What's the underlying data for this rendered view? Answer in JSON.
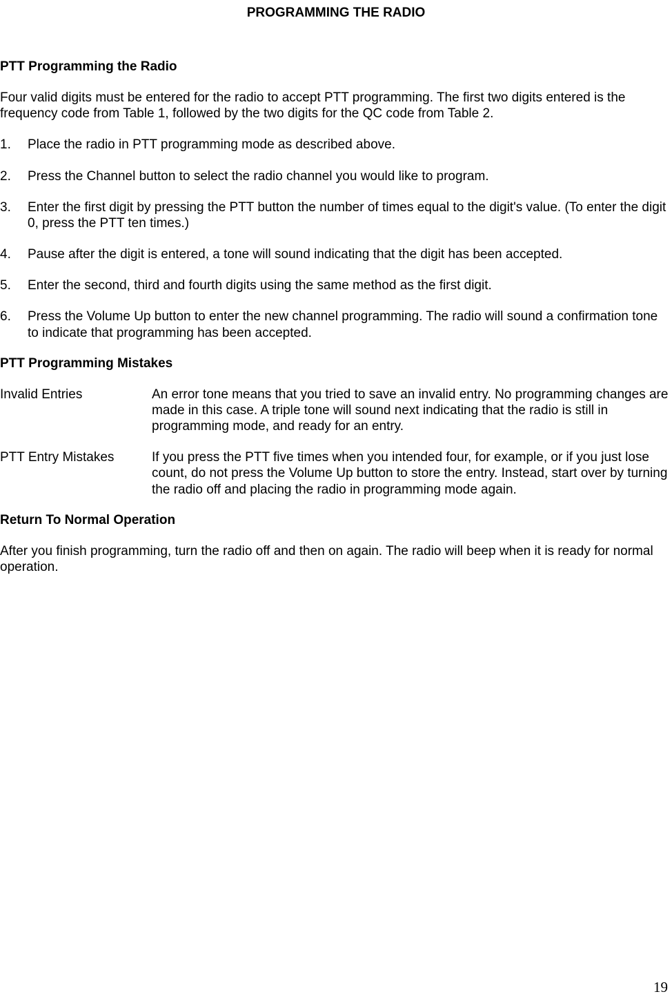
{
  "page": {
    "number": "19",
    "title": "PROGRAMMING THE RADIO"
  },
  "section1": {
    "heading": "PTT Programming the Radio",
    "intro": "Four valid digits must be entered for the radio to accept PTT programming.  The first two digits entered is the frequency code from Table 1, followed by the two digits for the QC code from Table 2."
  },
  "steps": [
    {
      "n": "1.",
      "text": "Place the radio in PTT programming mode as described above."
    },
    {
      "n": "2.",
      "text": "Press the Channel button to select the radio channel you would like to program."
    },
    {
      "n": "3.",
      "text": "Enter the first digit by pressing the PTT button the number of times equal to the digit's value. (To enter the digit 0, press the PTT ten times.)"
    },
    {
      "n": "4.",
      "text": "Pause after the digit is entered, a tone will sound indicating that the digit has been accepted."
    },
    {
      "n": "5.",
      "text": "Enter the second, third and fourth digits using the same method as the first digit."
    },
    {
      "n": "6.",
      "text": "Press the Volume Up button to enter the new channel programming.  The radio will sound a confirmation tone to indicate that programming has been accepted."
    }
  ],
  "section2": {
    "heading": "PTT Programming Mistakes"
  },
  "mistakes": [
    {
      "term": "Invalid Entries",
      "desc": "An error tone means that you tried to save an invalid entry.  No programming changes are made in this case.  A triple tone will sound next indicating that the radio is still in programming mode, and ready for an entry."
    },
    {
      "term": "PTT Entry Mistakes",
      "desc": "If you press the PTT five times when you intended four, for example, or if you just lose count, do not press the Volume Up button to store the entry.  Instead, start over by turning the radio off and placing the radio in programming mode again."
    }
  ],
  "section3": {
    "heading": "Return To Normal Operation",
    "body": "After you finish programming, turn the radio off and then on again. The radio will beep when it is ready for normal operation."
  }
}
